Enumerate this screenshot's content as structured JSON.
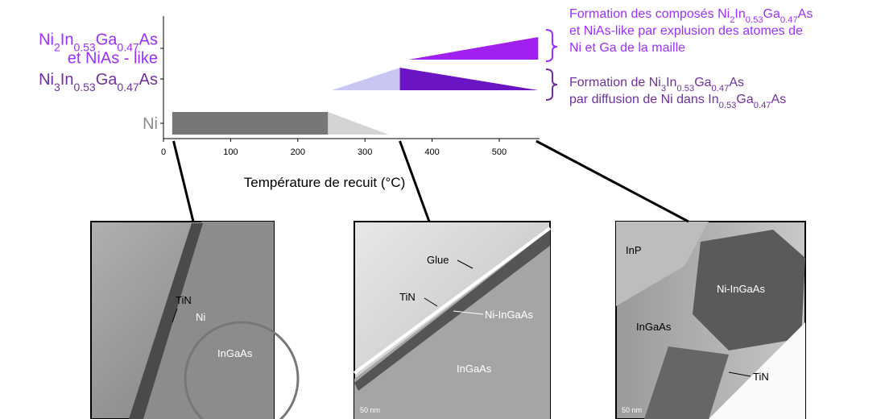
{
  "chart_data": {
    "type": "range-bands",
    "x_label": "Température de recuit (°C)",
    "xlim": [
      0,
      560
    ],
    "xticks": [
      0,
      100,
      200,
      300,
      400,
      500
    ],
    "series": [
      {
        "label": [
          [
            {
              "text": "Ni"
            }
          ]
        ],
        "color": "#8c8c8c",
        "segments": [
          {
            "from": 13,
            "to": 245,
            "shape": "rect",
            "color": "#777777"
          },
          {
            "from": 245,
            "to": 335,
            "shape": "fall",
            "color": "#d4d4d4"
          }
        ]
      },
      {
        "label": [
          [
            {
              "text": "Ni"
            },
            {
              "sub": "3"
            },
            {
              "text": "In"
            },
            {
              "sub": "0.53"
            },
            {
              "text": "Ga"
            },
            {
              "sub": "0.47"
            },
            {
              "text": "As"
            }
          ]
        ],
        "color": "#7030a0",
        "segments": [
          {
            "from": 251,
            "to": 352,
            "shape": "rise",
            "color": "#c8c6f2"
          },
          {
            "from": 352,
            "to": 558,
            "shape": "fall",
            "color": "#6a14c4"
          }
        ]
      },
      {
        "label": [
          [
            {
              "text": "Ni"
            },
            {
              "sub": "2"
            },
            {
              "text": "In"
            },
            {
              "sub": "0.53"
            },
            {
              "text": "Ga"
            },
            {
              "sub": "0.47"
            },
            {
              "text": "As"
            }
          ],
          [
            {
              "text": "et NiAs - like"
            }
          ]
        ],
        "color": "#9b30ff",
        "segments": [
          {
            "from": 365,
            "to": 558,
            "shape": "rise",
            "color": "#a020f0"
          }
        ]
      }
    ],
    "annotations": [
      {
        "color": "#9b30ff",
        "lines": [
          [
            {
              "text": "Formation des composés Ni"
            },
            {
              "sub": "2"
            },
            {
              "text": "In"
            },
            {
              "sub": "0.53"
            },
            {
              "text": "Ga"
            },
            {
              "sub": "0.47"
            },
            {
              "text": "As"
            }
          ],
          [
            {
              "text": "et NiAs-like par explusion des atomes de"
            }
          ],
          [
            {
              "text": "Ni et Ga de la maille"
            }
          ]
        ]
      },
      {
        "color": "#7030a0",
        "lines": [
          [
            {
              "text": "Formation de Ni"
            },
            {
              "sub": "3"
            },
            {
              "text": "In"
            },
            {
              "sub": "0.53"
            },
            {
              "text": "Ga"
            },
            {
              "sub": "0.47"
            },
            {
              "text": "As"
            }
          ],
          [
            {
              "text": "par diffusion de Ni dans In"
            },
            {
              "sub": "0.53"
            },
            {
              "text": "Ga"
            },
            {
              "sub": "0.47"
            },
            {
              "text": "As"
            }
          ]
        ]
      }
    ],
    "images": [
      {
        "temperature": 15,
        "labels": [
          "TiN",
          "Ni",
          "InGaAs"
        ]
      },
      {
        "temperature": 352,
        "labels": [
          "Glue",
          "TiN",
          "Ni-InGaAs",
          "InGaAs"
        ],
        "scale": "50 nm"
      },
      {
        "temperature": 555,
        "labels": [
          "InP",
          "Ni-InGaAs",
          "InGaAs",
          "TiN"
        ],
        "scale": "50 nm"
      }
    ]
  }
}
